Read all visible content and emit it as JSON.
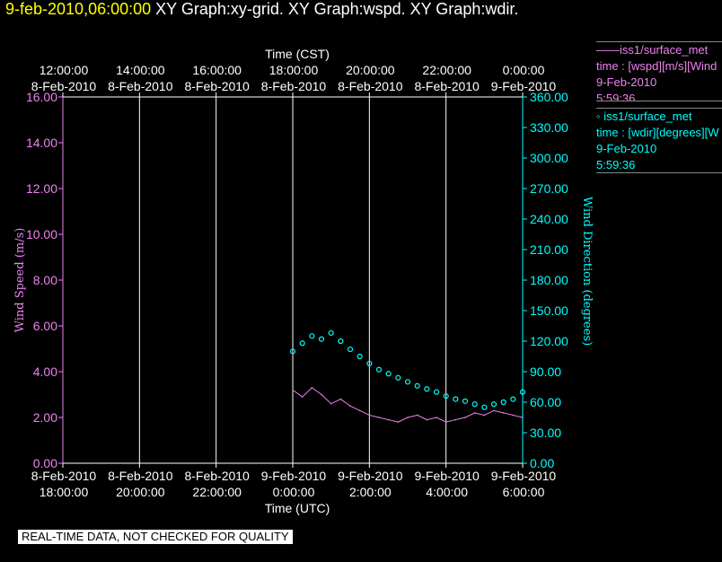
{
  "header": {
    "datetime": "9-feb-2010,06:00:00",
    "titles": "XY Graph:xy-grid.  XY Graph:wspd.  XY Graph:wdir."
  },
  "legend": {
    "wspd": {
      "name": "——iss1/surface_met",
      "var": "time : [wspd][m/s][Wind",
      "date": "9-Feb-2010",
      "time": "5:59:36"
    },
    "wdir": {
      "name": "◦  iss1/surface_met",
      "var": "time : [wdir][degrees][W",
      "date": "9-Feb-2010",
      "time": "5:59:36"
    }
  },
  "footer": "REAL-TIME DATA, NOT CHECKED FOR QUALITY",
  "colors": {
    "wspd": "#ee82ee",
    "wdir": "#00ffff",
    "grid": "#ffffff",
    "header_date": "#ffff00"
  },
  "chart_data": {
    "type": "line",
    "top_axis": {
      "title": "Time (CST)",
      "ticks": [
        {
          "t": "12:00:00",
          "d": "8-Feb-2010"
        },
        {
          "t": "14:00:00",
          "d": "8-Feb-2010"
        },
        {
          "t": "16:00:00",
          "d": "8-Feb-2010"
        },
        {
          "t": "18:00:00",
          "d": "8-Feb-2010"
        },
        {
          "t": "20:00:00",
          "d": "8-Feb-2010"
        },
        {
          "t": "22:00:00",
          "d": "8-Feb-2010"
        },
        {
          "t": "0:00:00",
          "d": "9-Feb-2010"
        }
      ]
    },
    "bottom_axis": {
      "title": "Time (UTC)",
      "ticks": [
        {
          "d": "8-Feb-2010",
          "t": "18:00:00"
        },
        {
          "d": "8-Feb-2010",
          "t": "20:00:00"
        },
        {
          "d": "8-Feb-2010",
          "t": "22:00:00"
        },
        {
          "d": "9-Feb-2010",
          "t": "0:00:00"
        },
        {
          "d": "9-Feb-2010",
          "t": "2:00:00"
        },
        {
          "d": "9-Feb-2010",
          "t": "4:00:00"
        },
        {
          "d": "9-Feb-2010",
          "t": "6:00:00"
        }
      ]
    },
    "left_axis": {
      "label": "Wind Speed (m/s)",
      "ylim": [
        0,
        16
      ],
      "ticks": [
        "0.00",
        "2.00",
        "4.00",
        "6.00",
        "8.00",
        "10.00",
        "12.00",
        "14.00",
        "16.00"
      ]
    },
    "right_axis": {
      "label": "Wind Direction (degrees)",
      "ylim": [
        0,
        360
      ],
      "ticks": [
        "0.00",
        "30.00",
        "60.00",
        "90.00",
        "120.00",
        "150.00",
        "180.00",
        "210.00",
        "240.00",
        "270.00",
        "300.00",
        "330.00",
        "360.00"
      ]
    },
    "series": [
      {
        "name": "wspd",
        "type": "line",
        "x_hours_utc": [
          24.0,
          24.25,
          24.5,
          24.75,
          25.0,
          25.25,
          25.5,
          25.75,
          26.0,
          26.25,
          26.5,
          26.75,
          27.0,
          27.25,
          27.5,
          27.75,
          28.0,
          28.25,
          28.5,
          28.75,
          29.0,
          29.25,
          29.5,
          29.75,
          30.0
        ],
        "values": [
          3.2,
          2.9,
          3.3,
          3.0,
          2.6,
          2.8,
          2.5,
          2.3,
          2.1,
          2.0,
          1.9,
          1.8,
          2.0,
          2.1,
          1.9,
          2.0,
          1.8,
          1.9,
          2.0,
          2.2,
          2.1,
          2.3,
          2.2,
          2.1,
          2.0
        ]
      },
      {
        "name": "wdir",
        "type": "scatter",
        "x_hours_utc": [
          24.0,
          24.25,
          24.5,
          24.75,
          25.0,
          25.25,
          25.5,
          25.75,
          26.0,
          26.25,
          26.5,
          26.75,
          27.0,
          27.25,
          27.5,
          27.75,
          28.0,
          28.25,
          28.5,
          28.75,
          29.0,
          29.25,
          29.5,
          29.75,
          30.0
        ],
        "values": [
          110,
          118,
          125,
          122,
          128,
          120,
          112,
          105,
          98,
          92,
          88,
          84,
          80,
          76,
          73,
          70,
          66,
          63,
          61,
          58,
          55,
          58,
          60,
          63,
          70
        ]
      }
    ],
    "grid": "vertical lines at bottom-axis ticks"
  }
}
